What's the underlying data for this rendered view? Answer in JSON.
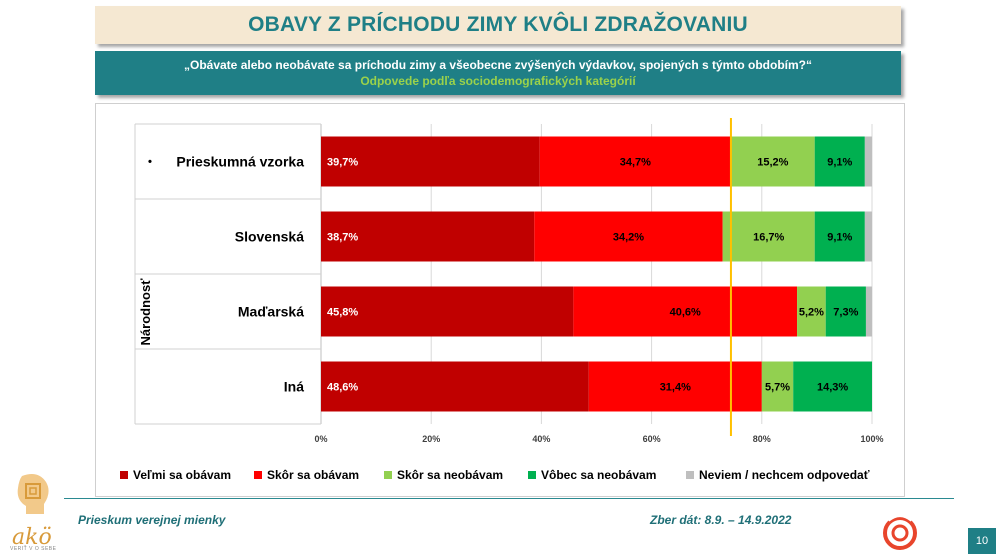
{
  "header": {
    "title": "OBAVY Z PRÍCHODU ZIMY KVÔLI ZDRAŽOVANIU",
    "question": "„Obávate alebo neobávate sa príchodu zimy a všeobecne zvýšených výdavkov, spojených s týmto obdobím?“",
    "subtitle": "Odpovede podľa sociodemografických kategórií"
  },
  "footer": {
    "survey": "Prieskum verejnej mienky",
    "date": "Zber dát: 8.9. – 14.9.2022",
    "page": "10",
    "logo_text": "akö",
    "logo_sub": "VERIŤ V O SEBE"
  },
  "chart_data": {
    "type": "bar",
    "orientation": "horizontal",
    "stacked": true,
    "group_label": "Národnosť",
    "categories": [
      "Prieskumná vzorka",
      "Slovenská",
      "Maďarská",
      "Iná"
    ],
    "category_markers": [
      "•",
      "",
      "",
      ""
    ],
    "series": [
      {
        "name": "Veľmi sa obávam",
        "color": "#c00000",
        "values": [
          39.7,
          38.7,
          45.8,
          48.6
        ],
        "labels": [
          "39,7%",
          "38,7%",
          "45,8%",
          "48,6%"
        ],
        "label_color": "#ffffff"
      },
      {
        "name": "Skôr sa obávam",
        "color": "#ff0000",
        "values": [
          34.7,
          34.2,
          40.6,
          31.4
        ],
        "labels": [
          "34,7%",
          "34,2%",
          "40,6%",
          "31,4%"
        ],
        "label_color": "#000000"
      },
      {
        "name": "Skôr sa neobávam",
        "color": "#92d050",
        "values": [
          15.2,
          16.7,
          5.2,
          5.7
        ],
        "labels": [
          "15,2%",
          "16,7%",
          "5,2%",
          "5,7%"
        ],
        "label_color": "#000000"
      },
      {
        "name": "Vôbec sa neobávam",
        "color": "#00b050",
        "values": [
          9.1,
          9.1,
          7.3,
          14.3
        ],
        "labels": [
          "9,1%",
          "9,1%",
          "7,3%",
          "14,3%"
        ],
        "label_color": "#000000"
      },
      {
        "name": "Neviem / nechcem odpovedať",
        "color": "#bfbfbf",
        "values": [
          1.3,
          1.3,
          1.1,
          0.0
        ],
        "labels": [
          "",
          "",
          "",
          ""
        ],
        "label_color": "#000000"
      }
    ],
    "x_ticks": [
      "0%",
      "20%",
      "40%",
      "60%",
      "80%",
      "100%"
    ],
    "xlim": [
      0,
      100
    ],
    "reference_line": {
      "value": 74.4,
      "color": "#ffc000"
    },
    "legend_position": "bottom"
  }
}
